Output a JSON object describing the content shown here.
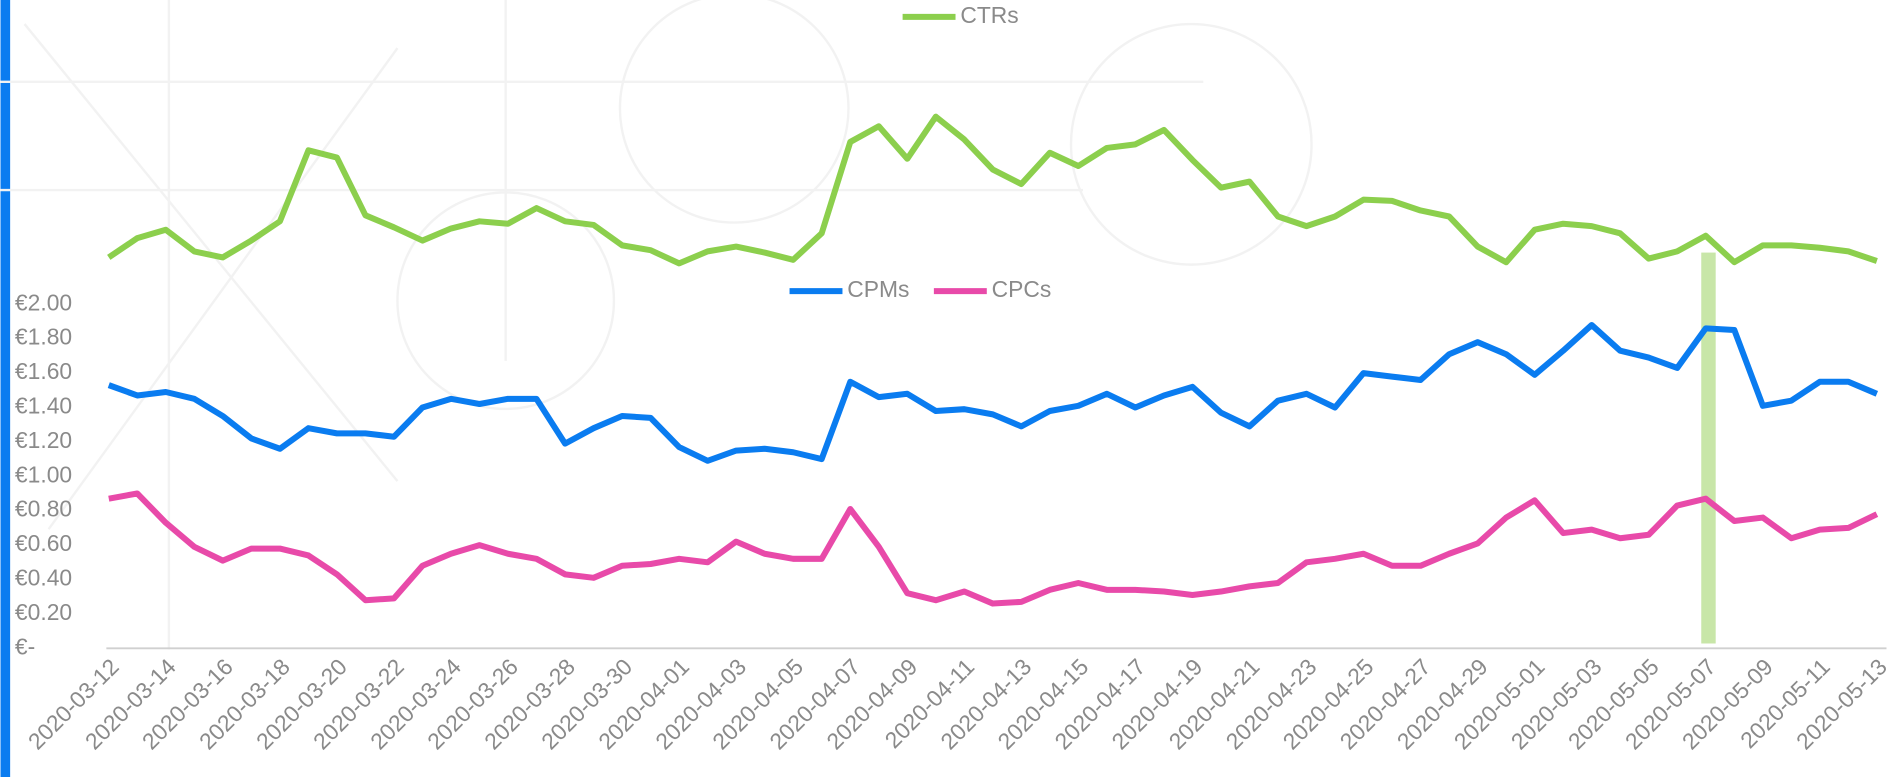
{
  "chart_data": [
    {
      "type": "line",
      "ylim": [
        0,
        2.5
      ],
      "series": [
        {
          "name": "CTRs",
          "color": "#8ccf4d",
          "values": [
            0.36,
            0.52,
            0.59,
            0.41,
            0.36,
            0.5,
            0.66,
            1.25,
            1.19,
            0.71,
            0.61,
            0.5,
            0.6,
            0.66,
            0.64,
            0.77,
            0.66,
            0.63,
            0.46,
            0.42,
            0.31,
            0.41,
            0.45,
            0.4,
            0.34,
            0.56,
            1.32,
            1.45,
            1.18,
            1.53,
            1.34,
            1.09,
            0.97,
            1.23,
            1.12,
            1.27,
            1.3,
            1.42,
            1.17,
            0.94,
            0.99,
            0.7,
            0.62,
            0.7,
            0.84,
            0.83,
            0.75,
            0.7,
            0.45,
            0.32,
            0.59,
            0.64,
            0.62,
            0.56,
            0.35,
            0.41,
            0.54,
            0.32,
            0.46,
            0.46,
            0.44,
            0.41,
            0.33
          ]
        }
      ]
    },
    {
      "type": "line",
      "ylim": [
        0,
        2
      ],
      "yticks": [
        {
          "value": 0,
          "label": "€-"
        },
        {
          "value": 0.2,
          "label": "€0.20"
        },
        {
          "value": 0.4,
          "label": "€0.40"
        },
        {
          "value": 0.6,
          "label": "€0.60"
        },
        {
          "value": 0.8,
          "label": "€0.80"
        },
        {
          "value": 1,
          "label": "€1.00"
        },
        {
          "value": 1.2,
          "label": "€1.20"
        },
        {
          "value": 1.4,
          "label": "€1.40"
        },
        {
          "value": 1.6,
          "label": "€1.60"
        },
        {
          "value": 1.8,
          "label": "€1.80"
        },
        {
          "value": 2,
          "label": "€2.00"
        }
      ],
      "categories": [
        "2020-03-12",
        null,
        "2020-03-14",
        null,
        "2020-03-16",
        null,
        "2020-03-18",
        null,
        "2020-03-20",
        null,
        "2020-03-22",
        null,
        "2020-03-24",
        null,
        "2020-03-26",
        null,
        "2020-03-28",
        null,
        "2020-03-30",
        null,
        "2020-04-01",
        null,
        "2020-04-03",
        null,
        "2020-04-05",
        null,
        "2020-04-07",
        null,
        "2020-04-09",
        null,
        "2020-04-11",
        null,
        "2020-04-13",
        null,
        "2020-04-15",
        null,
        "2020-04-17",
        null,
        "2020-04-19",
        null,
        "2020-04-21",
        null,
        "2020-04-23",
        null,
        "2020-04-25",
        null,
        "2020-04-27",
        null,
        "2020-04-29",
        null,
        "2020-05-01",
        null,
        "2020-05-03",
        null,
        "2020-05-05",
        null,
        "2020-05-07",
        null,
        "2020-05-09",
        null,
        "2020-05-11",
        null,
        "2020-05-13"
      ],
      "series": [
        {
          "name": "CPMs",
          "color": "#0a7cf0",
          "values": [
            1.53,
            1.47,
            1.49,
            1.45,
            1.35,
            1.22,
            1.16,
            1.28,
            1.25,
            1.25,
            1.23,
            1.4,
            1.45,
            1.42,
            1.45,
            1.45,
            1.19,
            1.28,
            1.35,
            1.34,
            1.17,
            1.09,
            1.15,
            1.16,
            1.14,
            1.1,
            1.55,
            1.46,
            1.48,
            1.38,
            1.39,
            1.36,
            1.29,
            1.38,
            1.41,
            1.48,
            1.4,
            1.47,
            1.52,
            1.37,
            1.29,
            1.44,
            1.48,
            1.4,
            1.6,
            1.58,
            1.56,
            1.71,
            1.78,
            1.71,
            1.59,
            1.73,
            1.88,
            1.73,
            1.69,
            1.63,
            1.86,
            1.85,
            1.41,
            1.44,
            1.55,
            1.55,
            1.48
          ]
        },
        {
          "name": "CPCs",
          "color": "#e84aa9",
          "values": [
            0.87,
            0.9,
            0.73,
            0.59,
            0.51,
            0.58,
            0.58,
            0.54,
            0.43,
            0.28,
            0.29,
            0.48,
            0.55,
            0.6,
            0.55,
            0.52,
            0.43,
            0.41,
            0.48,
            0.49,
            0.52,
            0.5,
            0.62,
            0.55,
            0.52,
            0.52,
            0.81,
            0.59,
            0.32,
            0.28,
            0.33,
            0.26,
            0.27,
            0.34,
            0.38,
            0.34,
            0.34,
            0.33,
            0.31,
            0.33,
            0.36,
            0.38,
            0.5,
            0.52,
            0.55,
            0.48,
            0.48,
            0.55,
            0.61,
            0.76,
            0.86,
            0.67,
            0.69,
            0.64,
            0.66,
            0.83,
            0.87,
            0.74,
            0.76,
            0.64,
            0.69,
            0.7,
            0.78
          ]
        }
      ]
    }
  ]
}
